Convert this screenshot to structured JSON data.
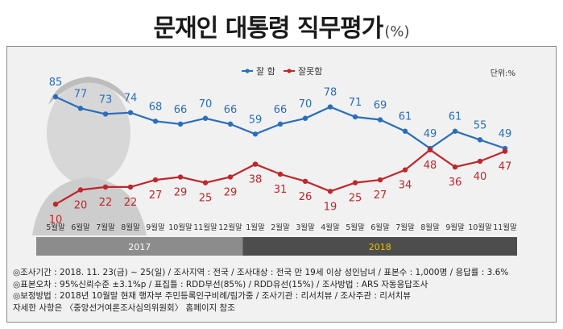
{
  "title": "문재인 대통령 직무평가",
  "title_unit": "(%)",
  "unit_label": "단위:%",
  "colors": {
    "approve": "#2a6ebb",
    "disapprove": "#c0262a",
    "year_2017_band": "#8c8c8c",
    "year_2018_band": "#4d4d4d",
    "year_2018_text": "#f2c200"
  },
  "chart_data": {
    "type": "line",
    "title": "문재인 대통령 직무평가",
    "categories": [
      "5월말",
      "6월말",
      "7월말",
      "8월말",
      "9월말",
      "10월말",
      "11월말",
      "12월말",
      "1월말",
      "2월말",
      "3월말",
      "4월말",
      "5월말",
      "6월말",
      "7월말",
      "8월말",
      "9월말",
      "10월말",
      "11월말"
    ],
    "years": [
      {
        "label": "2017",
        "from": 0,
        "to": 7
      },
      {
        "label": "2018",
        "from": 8,
        "to": 18
      }
    ],
    "series": [
      {
        "name": "잘 함",
        "values": [
          85,
          77,
          73,
          74,
          68,
          66,
          70,
          66,
          59,
          66,
          70,
          78,
          71,
          69,
          61,
          49,
          61,
          55,
          49
        ]
      },
      {
        "name": "잘못함",
        "values": [
          10,
          20,
          22,
          22,
          27,
          29,
          25,
          29,
          38,
          31,
          26,
          19,
          25,
          27,
          34,
          48,
          36,
          40,
          47
        ]
      }
    ],
    "ylim": [
      0,
      100
    ],
    "legend": "top-center",
    "grid": false
  },
  "notes": [
    "◎조사기간 : 2018. 11. 23(금) ~ 25(일) / 조사지역 : 전국 / 조사대상 : 전국 만 19세 이상 성인남녀 / 표본수 : 1,000명 / 응답률 : 3.6%",
    "◎표본오차 : 95%신뢰수준 ±3.1%p  / 표집틀 : RDD무선(85%) / RDD유선(15%) / 조사방법 : ARS 자동응답조사",
    "◎보정방법 : 2018년 10월말 현재 행자부 주민등록인구비례/림가중 / 조사기관 : 리서치뷰 / 조사주관 : 리서치뷰",
    "자세한 사항은 〈중앙선거여론조사심의위원회〉 홈페이지 참조"
  ]
}
